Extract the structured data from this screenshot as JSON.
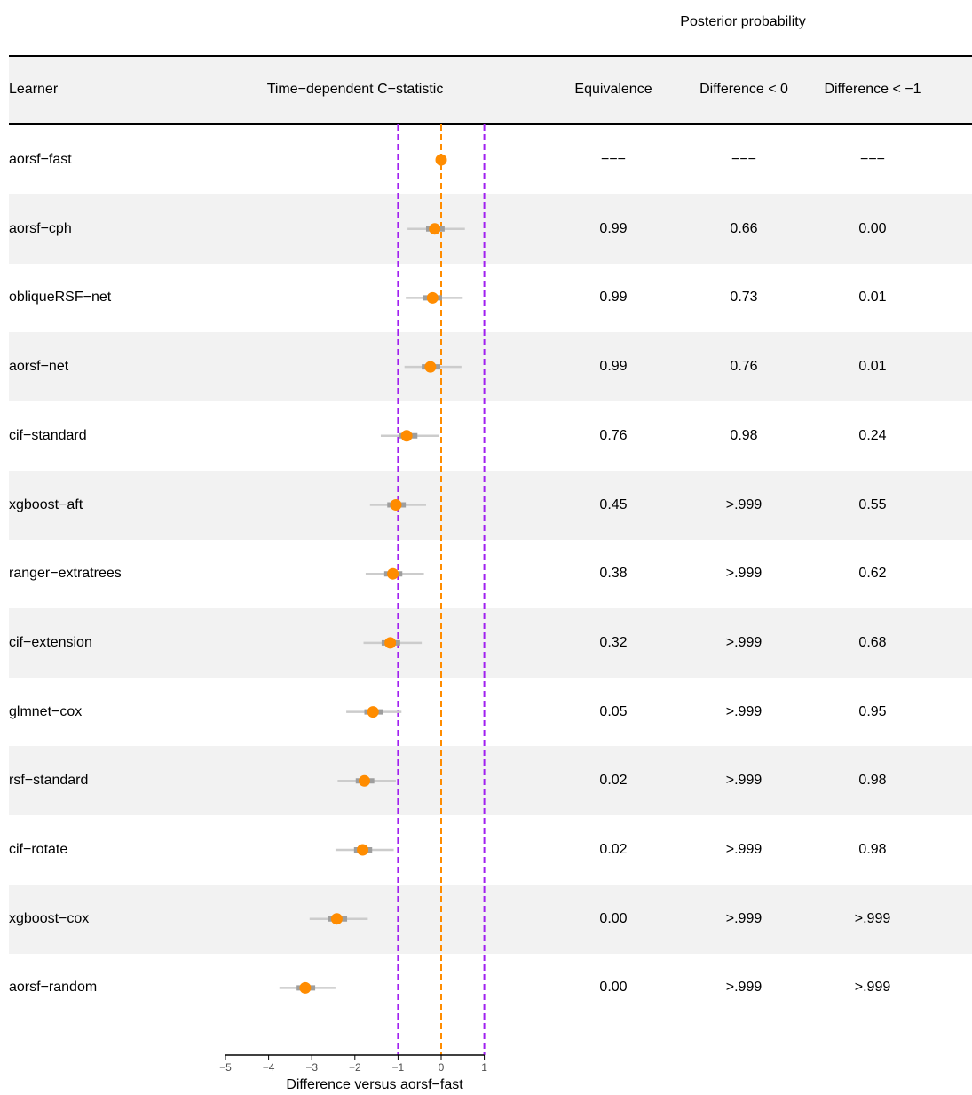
{
  "header": {
    "super_title": "Posterior probability",
    "col_learner": "Learner",
    "col_cstat": "Time−dependent C−statistic",
    "col_equiv": "Equivalence",
    "col_diff0": "Difference < 0",
    "col_diff1": "Difference < −1"
  },
  "chart_data": {
    "type": "forest",
    "xlabel": "Difference versus aorsf−fast",
    "xlim": [
      -5,
      1
    ],
    "xticks": [
      "−5",
      "−4",
      "−3",
      "−2",
      "−1",
      "0",
      "1"
    ],
    "xtick_values": [
      -5,
      -4,
      -3,
      -2,
      -1,
      0,
      1
    ],
    "reference_lines": [
      {
        "value": 0,
        "color": "#ff8c00",
        "style": "dashed"
      },
      {
        "value": -1,
        "color": "#a020f0",
        "style": "dashed"
      },
      {
        "value": 1,
        "color": "#a020f0",
        "style": "dashed"
      }
    ],
    "colors": {
      "point": "#ff8c00",
      "inner_interval": "#9e9e9e",
      "outer_interval": "#cccccc"
    },
    "rows": [
      {
        "learner": "aorsf−fast",
        "est": 0.0,
        "lo95": 0.0,
        "hi95": 0.0,
        "lo50": 0.0,
        "hi50": 0.0,
        "equiv": "−−−",
        "diff0": "−−−",
        "diff1": "−−−"
      },
      {
        "learner": "aorsf−cph",
        "est": -0.15,
        "lo95": -0.78,
        "hi95": 0.55,
        "lo50": -0.35,
        "hi50": 0.08,
        "equiv": "0.99",
        "diff0": "0.66",
        "diff1": "0.00"
      },
      {
        "learner": "obliqueRSF−net",
        "est": -0.2,
        "lo95": -0.82,
        "hi95": 0.5,
        "lo50": -0.42,
        "hi50": 0.02,
        "equiv": "0.99",
        "diff0": "0.73",
        "diff1": "0.01"
      },
      {
        "learner": "aorsf−net",
        "est": -0.25,
        "lo95": -0.85,
        "hi95": 0.47,
        "lo50": -0.45,
        "hi50": -0.02,
        "equiv": "0.99",
        "diff0": "0.76",
        "diff1": "0.01"
      },
      {
        "learner": "cif−standard",
        "est": -0.8,
        "lo95": -1.4,
        "hi95": -0.05,
        "lo50": -0.97,
        "hi50": -0.55,
        "equiv": "0.76",
        "diff0": "0.98",
        "diff1": "0.24"
      },
      {
        "learner": "xgboost−aft",
        "est": -1.05,
        "lo95": -1.65,
        "hi95": -0.35,
        "lo50": -1.25,
        "hi50": -0.82,
        "equiv": "0.45",
        "diff0": ">.999",
        "diff1": "0.55"
      },
      {
        "learner": "ranger−extratrees",
        "est": -1.12,
        "lo95": -1.75,
        "hi95": -0.4,
        "lo50": -1.32,
        "hi50": -0.9,
        "equiv": "0.38",
        "diff0": ">.999",
        "diff1": "0.62"
      },
      {
        "learner": "cif−extension",
        "est": -1.18,
        "lo95": -1.8,
        "hi95": -0.45,
        "lo50": -1.38,
        "hi50": -0.95,
        "equiv": "0.32",
        "diff0": ">.999",
        "diff1": "0.68"
      },
      {
        "learner": "glmnet−cox",
        "est": -1.58,
        "lo95": -2.2,
        "hi95": -0.92,
        "lo50": -1.78,
        "hi50": -1.35,
        "equiv": "0.05",
        "diff0": ">.999",
        "diff1": "0.95"
      },
      {
        "learner": "rsf−standard",
        "est": -1.78,
        "lo95": -2.4,
        "hi95": -1.05,
        "lo50": -1.98,
        "hi50": -1.55,
        "equiv": "0.02",
        "diff0": ">.999",
        "diff1": "0.98"
      },
      {
        "learner": "cif−rotate",
        "est": -1.82,
        "lo95": -2.45,
        "hi95": -1.1,
        "lo50": -2.02,
        "hi50": -1.6,
        "equiv": "0.02",
        "diff0": ">.999",
        "diff1": "0.98"
      },
      {
        "learner": "xgboost−cox",
        "est": -2.42,
        "lo95": -3.05,
        "hi95": -1.7,
        "lo50": -2.62,
        "hi50": -2.18,
        "equiv": "0.00",
        "diff0": ">.999",
        "diff1": ">.999"
      },
      {
        "learner": "aorsf−random",
        "est": -3.15,
        "lo95": -3.75,
        "hi95": -2.45,
        "lo50": -3.35,
        "hi50": -2.92,
        "equiv": "0.00",
        "diff0": ">.999",
        "diff1": ">.999"
      }
    ]
  }
}
